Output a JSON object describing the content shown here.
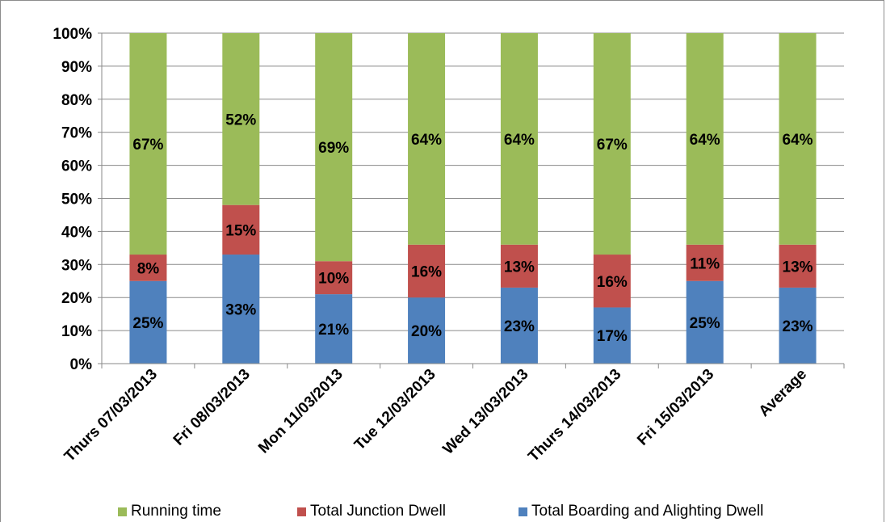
{
  "chart_data": {
    "type": "bar",
    "stacked": true,
    "percent_stacked": true,
    "categories": [
      "Thurs 07/03/2013",
      "Fri 08/03/2013",
      "Mon 11/03/2013",
      "Tue 12/03/2013",
      "Wed 13/03/2013",
      "Thurs 14/03/2013",
      "Fri 15/03/2013",
      "Average"
    ],
    "series": [
      {
        "name": "Total Boarding and Alighting Dwell",
        "color": "#4f81bd",
        "values": [
          25,
          33,
          21,
          20,
          23,
          17,
          25,
          23
        ],
        "labels": [
          "25%",
          "33%",
          "21%",
          "20%",
          "23%",
          "17%",
          "25%",
          "23%"
        ]
      },
      {
        "name": "Total Junction Dwell",
        "color": "#c0504d",
        "values": [
          8,
          15,
          10,
          16,
          13,
          16,
          11,
          13
        ],
        "labels": [
          "8%",
          "15%",
          "10%",
          "16%",
          "13%",
          "16%",
          "11%",
          "13%"
        ]
      },
      {
        "name": "Running time",
        "color": "#9bbb59",
        "values": [
          67,
          52,
          69,
          64,
          64,
          67,
          64,
          64
        ],
        "labels": [
          "67%",
          "52%",
          "69%",
          "64%",
          "64%",
          "67%",
          "64%",
          "64%"
        ]
      }
    ],
    "y_ticks": [
      "0%",
      "10%",
      "20%",
      "30%",
      "40%",
      "50%",
      "60%",
      "70%",
      "80%",
      "90%",
      "100%"
    ],
    "ylim": [
      0,
      100
    ],
    "grid": true,
    "legend_position": "bottom",
    "legend": [
      {
        "name": "Running time",
        "color": "#9bbb59"
      },
      {
        "name": "Total Junction Dwell",
        "color": "#c0504d"
      },
      {
        "name": "Total Boarding and Alighting Dwell",
        "color": "#4f81bd"
      }
    ]
  }
}
